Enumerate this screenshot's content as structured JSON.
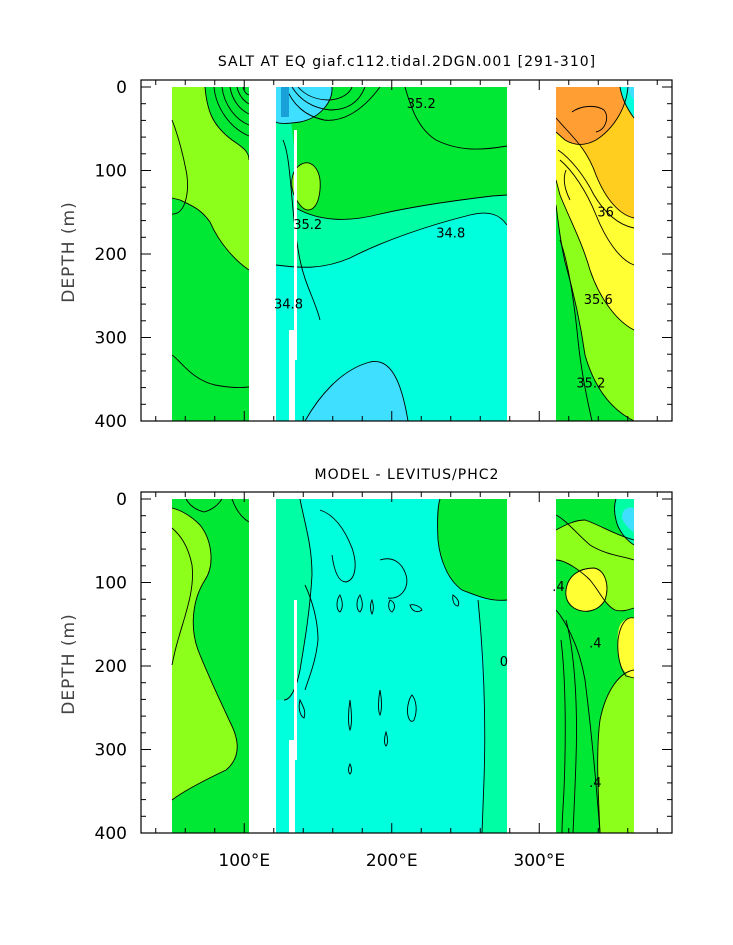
{
  "chart_data": [
    {
      "type": "heatmap",
      "title": "SALT AT EQ giaf.c112.tidal.2DGN.001 [291-310]",
      "ylabel": "DEPTH (m)",
      "y_ticks": [
        "0",
        "100",
        "200",
        "300",
        "400"
      ],
      "ylim": [
        400,
        0
      ],
      "x_ticks": [],
      "contour_labels": [
        {
          "text": "35.2",
          "x": 220,
          "y": 25
        },
        {
          "text": "35.2",
          "x": 143,
          "y": 170
        },
        {
          "text": "34.8",
          "x": 240,
          "y": 180
        },
        {
          "text": "34.8",
          "x": 130,
          "y": 265
        },
        {
          "text": "36",
          "x": 345,
          "y": 155
        },
        {
          "text": "35.6",
          "x": 340,
          "y": 260
        },
        {
          "text": "35.2",
          "x": 335,
          "y": 360
        }
      ],
      "colors": {
        "c1": "#00e833",
        "c2": "#8cff1a",
        "c3": "#00ffa5",
        "c4": "#00ffdd",
        "c5": "#3fe0ff",
        "c6": "#ffff33",
        "c7": "#ffce1f",
        "c8": "#ff9e33"
      }
    },
    {
      "type": "heatmap",
      "title": "MODEL - LEVITUS/PHC2",
      "ylabel": "DEPTH (m)",
      "y_ticks": [
        "0",
        "100",
        "200",
        "300",
        "400"
      ],
      "ylim": [
        400,
        0
      ],
      "x_ticks": [
        "100°E",
        "200°E",
        "300°E"
      ],
      "xlim": [
        30,
        390
      ],
      "contour_labels": [
        {
          "text": "0",
          "x": 276,
          "y": 200
        },
        {
          "text": ".4",
          "x": 313,
          "y": 110
        },
        {
          "text": ".4",
          "x": 338,
          "y": 178
        },
        {
          "text": ".4",
          "x": 338,
          "y": 345
        }
      ],
      "colors": {
        "c1": "#00e833",
        "c2": "#8cff1a",
        "c3": "#00ffa5",
        "c4": "#00ffdd",
        "c5": "#3fe0ff",
        "c6": "#ffff33",
        "c7": "#ffce1f",
        "c8": "#ff9e33"
      }
    }
  ]
}
